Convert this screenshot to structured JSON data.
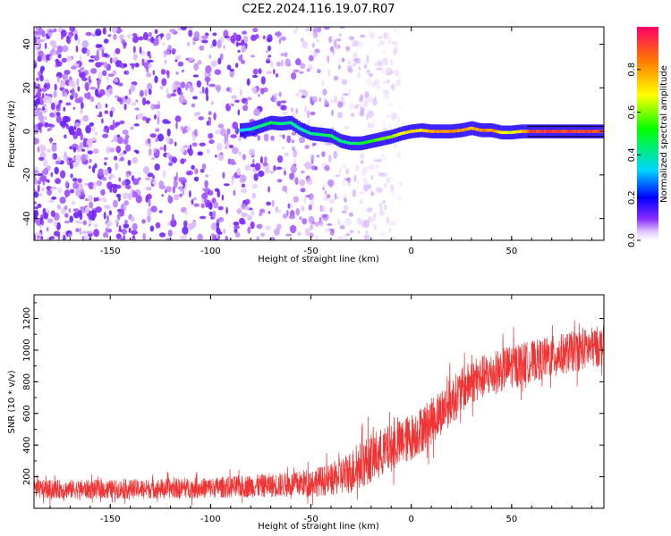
{
  "figure_title": "C2E2.2024.116.19.07.R07",
  "chart_data": [
    {
      "type": "heatmap",
      "title": "",
      "xlabel": "Height of straight line (km)",
      "ylabel": "Frequency (Hz)",
      "xlim": [
        -188,
        96
      ],
      "ylim": [
        -50,
        48
      ],
      "xticks": [
        -150,
        -100,
        -50,
        0,
        50
      ],
      "yticks": [
        -40,
        -20,
        0,
        20,
        40
      ],
      "colorbar": {
        "label": "Normalized spectral amplitude",
        "range": [
          0,
          1
        ],
        "ticks": [
          0.0,
          0.2,
          0.4,
          0.6,
          0.8
        ],
        "colormap": [
          "#f5e6ff",
          "#7a00ff",
          "#0000ff",
          "#00e5ff",
          "#00ff00",
          "#ffff00",
          "#ff8000",
          "#ff0050"
        ]
      },
      "noise_region_x": [
        -188,
        -30
      ],
      "signal_trace": {
        "x": [
          -85,
          -80,
          -75,
          -70,
          -65,
          -60,
          -55,
          -50,
          -45,
          -40,
          -35,
          -30,
          -25,
          -20,
          -15,
          -10,
          -5,
          0,
          5,
          10,
          15,
          20,
          25,
          30,
          35,
          40,
          45,
          50,
          55,
          60,
          65,
          70,
          75,
          80,
          85,
          90,
          96
        ],
        "y": [
          0.5,
          1.0,
          2.5,
          4.0,
          3.5,
          4.0,
          1.0,
          -1.0,
          -1.5,
          -2.0,
          -4.5,
          -5.5,
          -5.5,
          -4.5,
          -3.5,
          -2.5,
          -1.0,
          0.0,
          0.5,
          0.0,
          0.0,
          0.0,
          0.5,
          1.5,
          0.5,
          0.5,
          -0.5,
          -0.5,
          0.0,
          0.0,
          0.0,
          0.0,
          0.0,
          0.0,
          0.0,
          0.0,
          0.0
        ],
        "amplitude": [
          0.35,
          0.4,
          0.45,
          0.5,
          0.45,
          0.45,
          0.4,
          0.45,
          0.45,
          0.5,
          0.45,
          0.45,
          0.5,
          0.55,
          0.6,
          0.65,
          0.7,
          0.75,
          0.75,
          0.8,
          0.85,
          0.85,
          0.85,
          0.8,
          0.85,
          0.85,
          0.75,
          0.7,
          0.75,
          0.95,
          0.95,
          0.95,
          0.95,
          0.95,
          0.95,
          0.95,
          0.95
        ]
      }
    },
    {
      "type": "line",
      "title": "",
      "xlabel": "Height of straight line (km)",
      "ylabel": "SNR (10 * v/v)",
      "xlim": [
        -188,
        96
      ],
      "ylim": [
        0,
        1350
      ],
      "xticks": [
        -150,
        -100,
        -50,
        0,
        50
      ],
      "yticks": [
        200,
        400,
        600,
        800,
        1000,
        1200
      ],
      "series": [
        {
          "name": "SNR",
          "color": "#f03232",
          "x": [
            -188,
            -150,
            -100,
            -60,
            -40,
            -30,
            -20,
            -10,
            0,
            10,
            20,
            30,
            40,
            50,
            60,
            70,
            80,
            96
          ],
          "mean": [
            120,
            120,
            130,
            150,
            180,
            230,
            320,
            380,
            450,
            550,
            680,
            800,
            850,
            900,
            930,
            960,
            990,
            1030
          ],
          "spread": [
            60,
            60,
            65,
            80,
            100,
            140,
            160,
            150,
            150,
            150,
            150,
            140,
            140,
            140,
            130,
            130,
            130,
            130
          ]
        }
      ]
    }
  ]
}
